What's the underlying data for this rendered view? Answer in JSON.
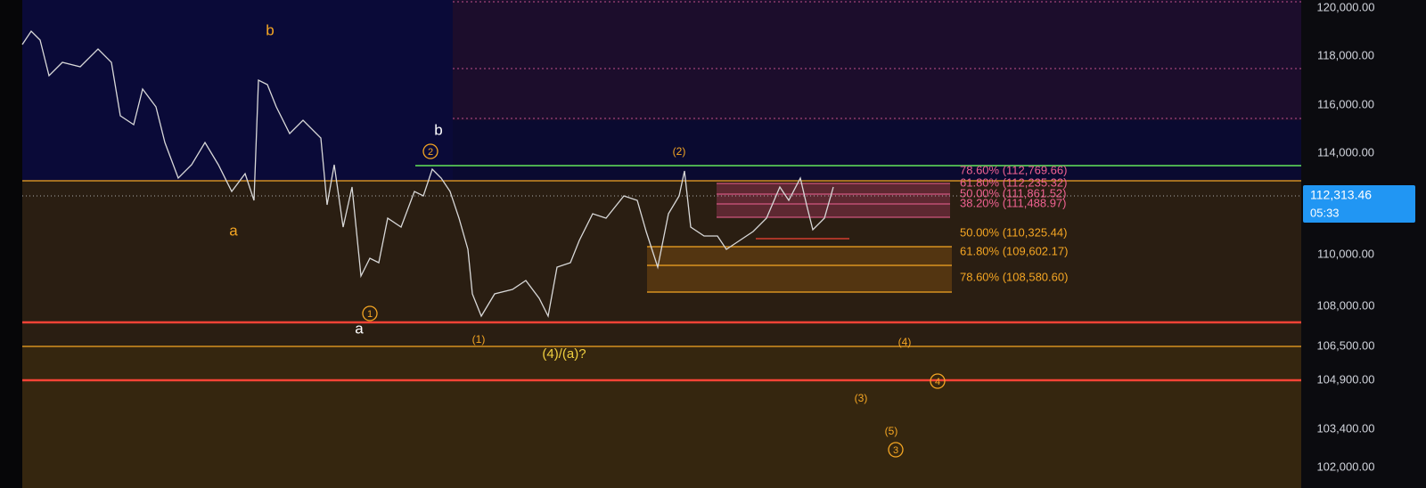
{
  "price_axis": {
    "labels": [
      "120,000.00",
      "118,000.00",
      "116,000.00",
      "114,000.00",
      "110,000.00",
      "108,000.00",
      "106,500.00",
      "104,900.00",
      "103,400.00",
      "102,000.00"
    ]
  },
  "current_price": {
    "price": "112,313.46",
    "timer": "05:33"
  },
  "fib_levels": [
    "78.60% (112,769.66)",
    "61.80% (112,235.32)",
    "50.00% (111,861.52)",
    "38.20% (111,488.97)",
    "50.00% (110,325.44)",
    "61.80% (109,602.17)",
    "78.60% (108,580.60)"
  ],
  "wave_labels": [
    "b",
    "a",
    "b",
    "2",
    "1",
    "a",
    "(1)",
    "(4)/(a)?",
    "(2)",
    "(4)",
    "4",
    "(3)",
    "(5)",
    "3"
  ]
}
